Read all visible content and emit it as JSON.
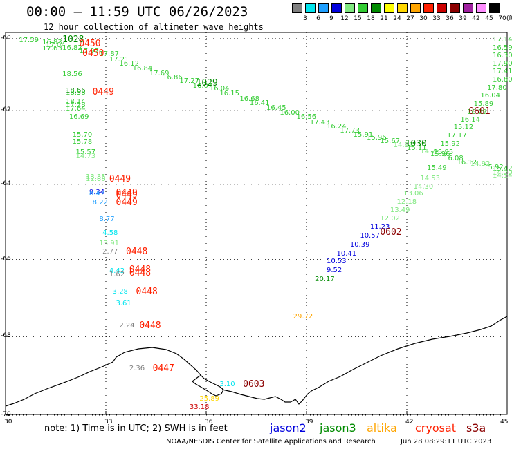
{
  "header": {
    "title": "00:00 – 11:59 UTC 06/26/2023",
    "subtitle": "12 hour collection of altimeter wave heights"
  },
  "legend": {
    "unit": "(ft)",
    "levels": [
      "3",
      "6",
      "9",
      "12",
      "15",
      "18",
      "21",
      "24",
      "27",
      "30",
      "33",
      "36",
      "39",
      "42",
      "45",
      "70"
    ],
    "colors": [
      "#808080",
      "#00e5ee",
      "#1f9fff",
      "#0000dd",
      "#80e880",
      "#33cc33",
      "#008b00",
      "#ffff00",
      "#ffd700",
      "#ffa500",
      "#ff2000",
      "#cc0000",
      "#8b0000",
      "#a020a0",
      "#ff8cff",
      "#000000"
    ]
  },
  "map": {
    "lat_range": [
      -70,
      -60
    ],
    "lon_range": [
      30,
      45
    ],
    "lat_ticks": [
      "-60",
      "-62",
      "-64",
      "-66",
      "-68",
      "-70"
    ],
    "lon_ticks": [
      "30",
      "33",
      "36",
      "39",
      "42",
      "45"
    ]
  },
  "points": [
    {
      "v": "17.59",
      "lon": 30.4,
      "lat": -60.05,
      "c": "#33cc33"
    },
    {
      "v": "16.83",
      "lon": 31.1,
      "lat": -60.12,
      "c": "#33cc33"
    },
    {
      "v": "17.04",
      "lon": 31.2,
      "lat": -60.2,
      "c": "#33cc33"
    },
    {
      "v": "17.63",
      "lon": 31.1,
      "lat": -60.3,
      "c": "#33cc33"
    },
    {
      "v": "16.82",
      "lon": 31.7,
      "lat": -60.28,
      "c": "#33cc33"
    },
    {
      "v": "17.97",
      "lon": 32.2,
      "lat": -60.36,
      "c": "#33cc33"
    },
    {
      "v": "17.87",
      "lon": 32.8,
      "lat": -60.45,
      "c": "#33cc33"
    },
    {
      "v": "17.21",
      "lon": 33.1,
      "lat": -60.6,
      "c": "#33cc33"
    },
    {
      "v": "16.12",
      "lon": 33.4,
      "lat": -60.72,
      "c": "#33cc33"
    },
    {
      "v": "16.84",
      "lon": 33.8,
      "lat": -60.85,
      "c": "#33cc33"
    },
    {
      "v": "17.69",
      "lon": 34.3,
      "lat": -60.98,
      "c": "#33cc33"
    },
    {
      "v": "16.86",
      "lon": 34.7,
      "lat": -61.1,
      "c": "#33cc33"
    },
    {
      "v": "17.27",
      "lon": 35.2,
      "lat": -61.2,
      "c": "#33cc33"
    },
    {
      "v": "16.07",
      "lon": 35.6,
      "lat": -61.33,
      "c": "#33cc33"
    },
    {
      "v": "16.04",
      "lon": 36.1,
      "lat": -61.4,
      "c": "#33cc33"
    },
    {
      "v": "16.15",
      "lon": 36.4,
      "lat": -61.54,
      "c": "#33cc33"
    },
    {
      "v": "16.68",
      "lon": 37.0,
      "lat": -61.7,
      "c": "#33cc33"
    },
    {
      "v": "16.41",
      "lon": 37.3,
      "lat": -61.81,
      "c": "#33cc33"
    },
    {
      "v": "16.45",
      "lon": 37.8,
      "lat": -61.93,
      "c": "#33cc33"
    },
    {
      "v": "16.00",
      "lon": 38.2,
      "lat": -62.07,
      "c": "#33cc33"
    },
    {
      "v": "16.56",
      "lon": 38.7,
      "lat": -62.19,
      "c": "#33cc33"
    },
    {
      "v": "17.43",
      "lon": 39.1,
      "lat": -62.33,
      "c": "#33cc33"
    },
    {
      "v": "16.24",
      "lon": 39.6,
      "lat": -62.45,
      "c": "#33cc33"
    },
    {
      "v": "17.73",
      "lon": 40.0,
      "lat": -62.56,
      "c": "#33cc33"
    },
    {
      "v": "15.91",
      "lon": 40.4,
      "lat": -62.67,
      "c": "#33cc33"
    },
    {
      "v": "15.96",
      "lon": 40.8,
      "lat": -62.75,
      "c": "#33cc33"
    },
    {
      "v": "15.67",
      "lon": 41.2,
      "lat": -62.85,
      "c": "#33cc33"
    },
    {
      "v": "14.91",
      "lon": 41.6,
      "lat": -62.95,
      "c": "#80e880"
    },
    {
      "v": "15.11",
      "lon": 42.0,
      "lat": -63.03,
      "c": "#33cc33"
    },
    {
      "v": "14.75",
      "lon": 42.4,
      "lat": -63.12,
      "c": "#80e880"
    },
    {
      "v": "15.96",
      "lon": 42.7,
      "lat": -63.2,
      "c": "#33cc33"
    },
    {
      "v": "16.08",
      "lon": 43.1,
      "lat": -63.32,
      "c": "#33cc33"
    },
    {
      "v": "16.12",
      "lon": 43.5,
      "lat": -63.42,
      "c": "#33cc33"
    },
    {
      "v": "14.92",
      "lon": 43.9,
      "lat": -63.47,
      "c": "#80e880"
    },
    {
      "v": "15.92",
      "lon": 44.3,
      "lat": -63.55,
      "c": "#33cc33"
    },
    {
      "v": "15.42",
      "lon": 44.8,
      "lat": -63.6,
      "c": "#33cc33"
    },
    {
      "v": "14.20",
      "lon": 45.2,
      "lat": -63.7,
      "c": "#80e880"
    },
    {
      "v": "14.14",
      "lon": 45.5,
      "lat": -63.78,
      "c": "#80e880"
    },
    {
      "v": "17.14",
      "lon": 45.5,
      "lat": -60.04,
      "c": "#33cc33"
    },
    {
      "v": "16.59",
      "lon": 45.4,
      "lat": -60.27,
      "c": "#33cc33"
    },
    {
      "v": "16.30",
      "lon": 45.3,
      "lat": -60.49,
      "c": "#33cc33"
    },
    {
      "v": "17.90",
      "lon": 45.0,
      "lat": -60.72,
      "c": "#33cc33"
    },
    {
      "v": "17.41",
      "lon": 44.8,
      "lat": -60.93,
      "c": "#33cc33"
    },
    {
      "v": "16.80",
      "lon": 44.6,
      "lat": -61.15,
      "c": "#33cc33"
    },
    {
      "v": "17.80",
      "lon": 44.4,
      "lat": -61.38,
      "c": "#33cc33"
    },
    {
      "v": "16.04",
      "lon": 44.2,
      "lat": -61.6,
      "c": "#33cc33"
    },
    {
      "v": "15.89",
      "lon": 44.0,
      "lat": -61.83,
      "c": "#33cc33"
    },
    {
      "v": "16.29",
      "lon": 43.8,
      "lat": -62.05,
      "c": "#33cc33"
    },
    {
      "v": "16.14",
      "lon": 43.6,
      "lat": -62.26,
      "c": "#33cc33"
    },
    {
      "v": "15.12",
      "lon": 43.4,
      "lat": -62.47,
      "c": "#33cc33"
    },
    {
      "v": "17.17",
      "lon": 43.2,
      "lat": -62.7,
      "c": "#33cc33"
    },
    {
      "v": "15.92",
      "lon": 43.0,
      "lat": -62.93,
      "c": "#33cc33"
    },
    {
      "v": "15.95",
      "lon": 42.8,
      "lat": -63.15,
      "c": "#33cc33"
    },
    {
      "v": "15.49",
      "lon": 42.6,
      "lat": -63.58,
      "c": "#33cc33"
    },
    {
      "v": "14.53",
      "lon": 42.4,
      "lat": -63.85,
      "c": "#80e880"
    },
    {
      "v": "14.30",
      "lon": 42.2,
      "lat": -64.07,
      "c": "#80e880"
    },
    {
      "v": "13.06",
      "lon": 41.9,
      "lat": -64.27,
      "c": "#80e880"
    },
    {
      "v": "12.18",
      "lon": 41.7,
      "lat": -64.48,
      "c": "#80e880"
    },
    {
      "v": "13.49",
      "lon": 41.5,
      "lat": -64.7,
      "c": "#80e880"
    },
    {
      "v": "12.02",
      "lon": 41.2,
      "lat": -64.93,
      "c": "#80e880"
    },
    {
      "v": "11.23",
      "lon": 40.9,
      "lat": -65.15,
      "c": "#0000dd"
    },
    {
      "v": "10.57",
      "lon": 40.6,
      "lat": -65.38,
      "c": "#0000dd"
    },
    {
      "v": "10.39",
      "lon": 40.3,
      "lat": -65.62,
      "c": "#0000dd"
    },
    {
      "v": "10.41",
      "lon": 39.9,
      "lat": -65.85,
      "c": "#0000dd"
    },
    {
      "v": "10.53",
      "lon": 39.6,
      "lat": -66.05,
      "c": "#0000dd"
    },
    {
      "v": "9.52",
      "lon": 39.6,
      "lat": -66.3,
      "c": "#0000dd"
    },
    {
      "v": "20.17",
      "lon": 39.25,
      "lat": -66.52,
      "c": "#008b00"
    },
    {
      "v": "18.56",
      "lon": 31.7,
      "lat": -61.0,
      "c": "#33cc33"
    },
    {
      "v": "18.66",
      "lon": 31.8,
      "lat": -61.46,
      "c": "#008b00"
    },
    {
      "v": "18.58",
      "lon": 31.8,
      "lat": -61.53,
      "c": "#33cc33"
    },
    {
      "v": "18.14",
      "lon": 31.8,
      "lat": -61.76,
      "c": "#33cc33"
    },
    {
      "v": "17.28",
      "lon": 31.8,
      "lat": -61.86,
      "c": "#33cc33"
    },
    {
      "v": "17.64",
      "lon": 31.8,
      "lat": -61.96,
      "c": "#33cc33"
    },
    {
      "v": "16.69",
      "lon": 31.9,
      "lat": -62.19,
      "c": "#33cc33"
    },
    {
      "v": "15.70",
      "lon": 32.0,
      "lat": -62.68,
      "c": "#33cc33"
    },
    {
      "v": "15.78",
      "lon": 32.0,
      "lat": -62.87,
      "c": "#33cc33"
    },
    {
      "v": "15.57",
      "lon": 32.1,
      "lat": -63.14,
      "c": "#33cc33"
    },
    {
      "v": "14.73",
      "lon": 32.1,
      "lat": -63.25,
      "c": "#80e880"
    },
    {
      "v": "13.35",
      "lon": 32.4,
      "lat": -63.81,
      "c": "#80e880"
    },
    {
      "v": "12.86",
      "lon": 32.4,
      "lat": -63.88,
      "c": "#80e880"
    },
    {
      "v": "9.34",
      "lon": 32.5,
      "lat": -64.22,
      "c": "#0000dd"
    },
    {
      "v": "8.47",
      "lon": 32.5,
      "lat": -64.27,
      "c": "#1f9fff"
    },
    {
      "v": "8.22",
      "lon": 32.6,
      "lat": -64.51,
      "c": "#1f9fff"
    },
    {
      "v": "8.77",
      "lon": 32.8,
      "lat": -64.95,
      "c": "#1f9fff"
    },
    {
      "v": "4.58",
      "lon": 32.9,
      "lat": -65.32,
      "c": "#00e5ee"
    },
    {
      "v": "13.91",
      "lon": 32.8,
      "lat": -65.58,
      "c": "#80e880"
    },
    {
      "v": "2.77",
      "lon": 32.9,
      "lat": -65.8,
      "c": "#808080"
    },
    {
      "v": "4.42",
      "lon": 33.1,
      "lat": -66.32,
      "c": "#00e5ee"
    },
    {
      "v": "1.62",
      "lon": 33.1,
      "lat": -66.4,
      "c": "#808080"
    },
    {
      "v": "3.28",
      "lon": 33.2,
      "lat": -66.85,
      "c": "#00e5ee"
    },
    {
      "v": "3.61",
      "lon": 33.3,
      "lat": -67.15,
      "c": "#00e5ee"
    },
    {
      "v": "2.24",
      "lon": 33.4,
      "lat": -67.73,
      "c": "#808080"
    },
    {
      "v": "29.72",
      "lon": 38.6,
      "lat": -67.5,
      "c": "#ffa500"
    },
    {
      "v": "2.36",
      "lon": 33.7,
      "lat": -68.83,
      "c": "#808080"
    },
    {
      "v": "3.10",
      "lon": 36.4,
      "lat": -69.24,
      "c": "#00e5ee"
    },
    {
      "v": "25.89",
      "lon": 35.8,
      "lat": -69.6,
      "c": "#ffd700"
    },
    {
      "v": "33.18",
      "lon": 35.5,
      "lat": -69.8,
      "c": "#cc0000"
    }
  ],
  "stamps": [
    {
      "t": "1028",
      "lon": 31.7,
      "lat": -60.04,
      "c": "#008b00"
    },
    {
      "t": "0450",
      "lon": 32.2,
      "lat": -60.15,
      "c": "#ff2000"
    },
    {
      "t": "0450",
      "lon": 32.3,
      "lat": -60.43,
      "c": "#ff2000"
    },
    {
      "t": "0449",
      "lon": 32.6,
      "lat": -61.5,
      "c": "#ff2000"
    },
    {
      "t": "1029",
      "lon": 35.7,
      "lat": -61.25,
      "c": "#008b00"
    },
    {
      "t": "1030",
      "lon": 41.95,
      "lat": -62.93,
      "c": "#008b00"
    },
    {
      "t": "0601",
      "lon": 43.85,
      "lat": -62.04,
      "c": "#8b0000"
    },
    {
      "t": "0449",
      "lon": 33.1,
      "lat": -63.87,
      "c": "#ff2000"
    },
    {
      "t": "0449",
      "lon": 33.3,
      "lat": -64.25,
      "c": "#ff2000"
    },
    {
      "t": "0449",
      "lon": 33.3,
      "lat": -64.3,
      "c": "#ff2000"
    },
    {
      "t": "0449",
      "lon": 33.3,
      "lat": -64.51,
      "c": "#ff2000"
    },
    {
      "t": "0448",
      "lon": 33.6,
      "lat": -65.8,
      "c": "#ff2000"
    },
    {
      "t": "0448",
      "lon": 33.7,
      "lat": -66.28,
      "c": "#ff2000"
    },
    {
      "t": "0448",
      "lon": 33.7,
      "lat": -66.36,
      "c": "#ff2000"
    },
    {
      "t": "0448",
      "lon": 33.9,
      "lat": -66.85,
      "c": "#ff2000"
    },
    {
      "t": "0448",
      "lon": 34.0,
      "lat": -67.73,
      "c": "#ff2000"
    },
    {
      "t": "0602",
      "lon": 41.2,
      "lat": -65.3,
      "c": "#8b0000"
    },
    {
      "t": "0447",
      "lon": 34.4,
      "lat": -68.83,
      "c": "#ff2000"
    },
    {
      "t": "0603",
      "lon": 37.1,
      "lat": -69.24,
      "c": "#8b0000"
    }
  ],
  "footer": {
    "note": "note:  1) Time is in UTC;  2) SWH is in feet",
    "satellites": [
      {
        "name": "jason2",
        "color": "#0000dd"
      },
      {
        "name": "jason3",
        "color": "#008b00"
      },
      {
        "name": "altika",
        "color": "#ffa500"
      },
      {
        "name": "cryosat",
        "color": "#ff2000"
      },
      {
        "name": "s3a",
        "color": "#8b0000"
      }
    ],
    "credit": "NOAA/NESDIS Center for Satellite Applications and Research",
    "timestamp": "Jun 28 08:29:11 UTC 2023"
  }
}
